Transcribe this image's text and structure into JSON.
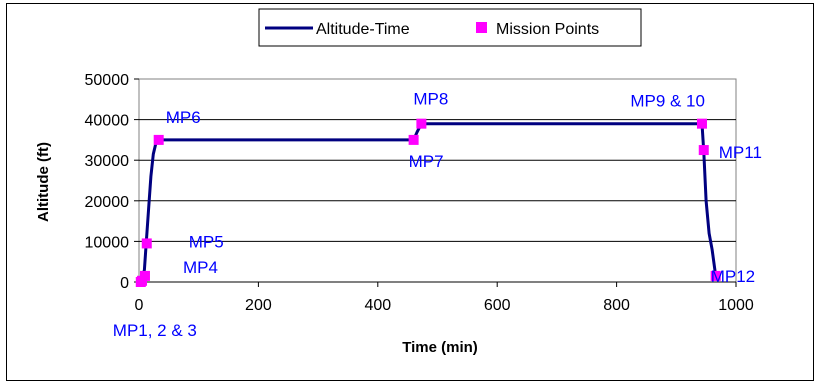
{
  "chart_data": {
    "type": "line",
    "xlabel": "Time (min)",
    "ylabel": "Altitude (ft)",
    "xlim": [
      0,
      1000
    ],
    "ylim": [
      0,
      50000
    ],
    "x_ticks": [
      "0",
      "200",
      "400",
      "600",
      "800",
      "1000"
    ],
    "y_ticks": [
      "0",
      "10000",
      "20000",
      "30000",
      "40000",
      "50000"
    ],
    "grid": "horizontal",
    "legend_position": "top-center",
    "series": [
      {
        "name": "Altitude-Time",
        "kind": "line",
        "color": "#000080",
        "points": [
          {
            "x": 2,
            "y": 0
          },
          {
            "x": 4,
            "y": 400
          },
          {
            "x": 6,
            "y": 1200
          },
          {
            "x": 9,
            "y": 3000
          },
          {
            "x": 12,
            "y": 9500
          },
          {
            "x": 16,
            "y": 18000
          },
          {
            "x": 20,
            "y": 26000
          },
          {
            "x": 24,
            "y": 31500
          },
          {
            "x": 28,
            "y": 34000
          },
          {
            "x": 33,
            "y": 35000
          },
          {
            "x": 460,
            "y": 35000
          },
          {
            "x": 466,
            "y": 37000
          },
          {
            "x": 473,
            "y": 39000
          },
          {
            "x": 943,
            "y": 39000
          },
          {
            "x": 946,
            "y": 32000
          },
          {
            "x": 950,
            "y": 20000
          },
          {
            "x": 955,
            "y": 12000
          },
          {
            "x": 960,
            "y": 8000
          },
          {
            "x": 966,
            "y": 1500
          }
        ]
      },
      {
        "name": "Mission Points",
        "kind": "marker",
        "color": "#ff00ff",
        "points": [
          {
            "x": 3,
            "y": 0
          },
          {
            "x": 5,
            "y": 300
          },
          {
            "x": 10,
            "y": 1500
          },
          {
            "x": 13,
            "y": 9500
          },
          {
            "x": 33,
            "y": 35000
          },
          {
            "x": 460,
            "y": 35000
          },
          {
            "x": 473,
            "y": 39000
          },
          {
            "x": 943,
            "y": 39000
          },
          {
            "x": 946,
            "y": 32500
          },
          {
            "x": 966,
            "y": 1500
          }
        ]
      }
    ],
    "annotations": [
      {
        "text": "MP1, 2 & 3",
        "x": 3,
        "y": 0
      },
      {
        "text": "MP4",
        "x": 10,
        "y": 1500
      },
      {
        "text": "MP5",
        "x": 13,
        "y": 9500
      },
      {
        "text": "MP6",
        "x": 33,
        "y": 35000
      },
      {
        "text": "MP7",
        "x": 460,
        "y": 35000
      },
      {
        "text": "MP8",
        "x": 473,
        "y": 39000
      },
      {
        "text": "MP9 & 10",
        "x": 943,
        "y": 39000
      },
      {
        "text": "MP11",
        "x": 946,
        "y": 32500
      },
      {
        "text": "MP12",
        "x": 966,
        "y": 1500
      }
    ],
    "annotation_color": "#0000ff"
  }
}
